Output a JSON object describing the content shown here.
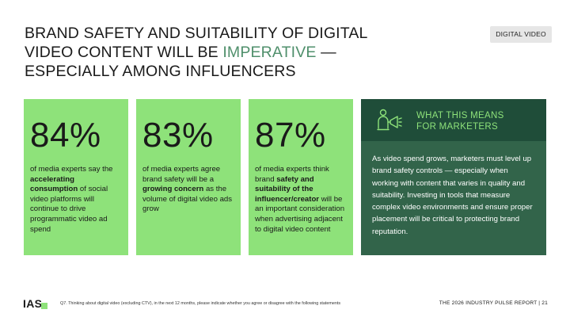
{
  "title": {
    "part1": "BRAND SAFETY AND SUITABILITY OF DIGITAL VIDEO CONTENT WILL BE ",
    "highlight": "IMPERATIVE",
    "part2": " — ESPECIALLY AMONG INFLUENCERS"
  },
  "tag": "DIGITAL VIDEO",
  "stats": [
    {
      "value": "84%",
      "pre": "of media experts say the ",
      "bold": "accelerating consumption",
      "post": " of social video platforms will continue to drive programmatic video ad spend"
    },
    {
      "value": "83%",
      "pre": "of media experts agree brand safety will be a ",
      "bold": "growing concern",
      "post": " as the volume of digital video ads grow"
    },
    {
      "value": "87%",
      "pre": "of media experts think brand ",
      "bold": "safety and suitability of the influencer/creator",
      "post": " will be an important consideration when advertising adjacent to digital video content"
    }
  ],
  "panel": {
    "title_line1": "WHAT THIS MEANS",
    "title_line2": "FOR MARKETERS",
    "icon": "person-megaphone-icon",
    "body": "As video spend grows, marketers must level up brand safety controls — especially when working with content that varies in quality and suitability. Investing in tools that measure complex video environments and ensure proper placement will be critical to protecting brand reputation."
  },
  "footer": {
    "logo": "IAS",
    "footnote": "Q7. Thinking about digital video (excluding CTV), in the next 12 months, please indicate whether you agree or disagree with the following statements",
    "report": "THE 2026 INDUSTRY PULSE REPORT  |  21"
  },
  "colors": {
    "card_green": "#8ee27a",
    "panel_dark": "#32644a",
    "panel_header": "#1f4d39",
    "highlight": "#4f8f6b"
  }
}
